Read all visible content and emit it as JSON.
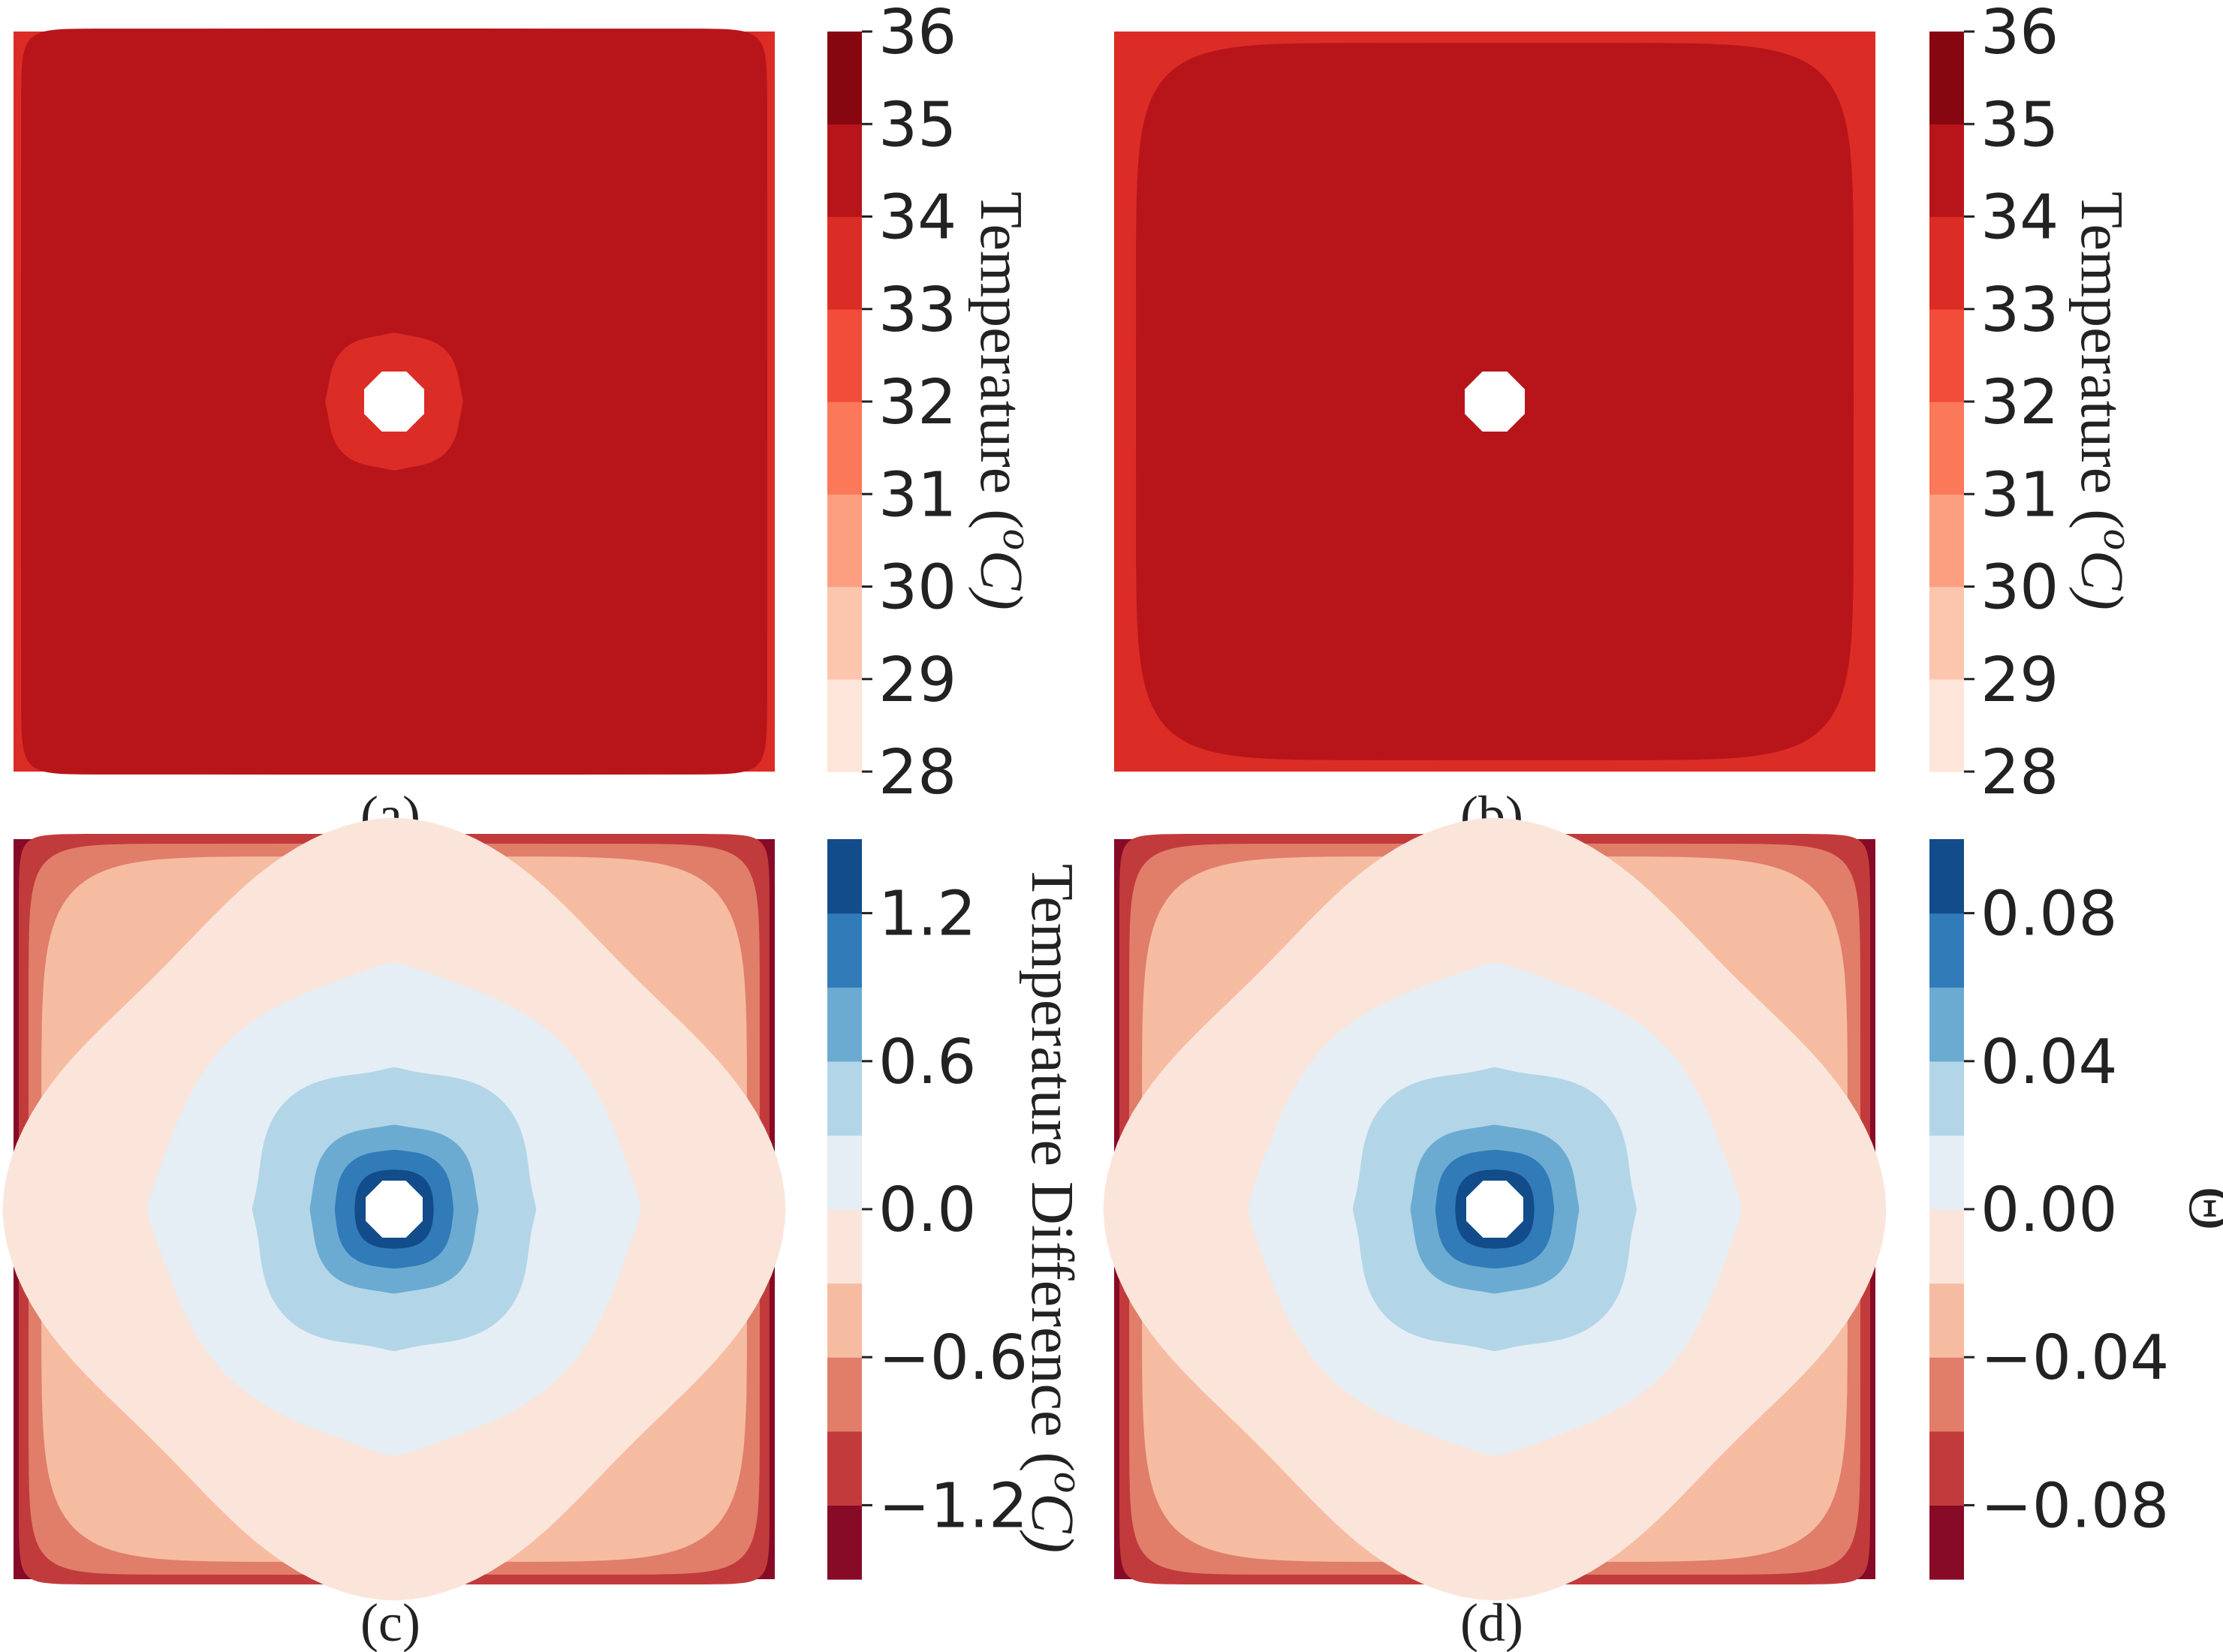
{
  "figure": {
    "panels": [
      "(a)",
      "(b)",
      "(c)",
      "(d)"
    ]
  },
  "chart_data": [
    {
      "type": "heatmap",
      "panel": "(a)",
      "plot": "filled contour",
      "colormap": "Reds",
      "colorbar": {
        "label": "Temperature (°C)",
        "label_base": "Temperature (",
        "label_sup": "o",
        "label_end": "C)",
        "ticks": [
          "28",
          "29",
          "30",
          "31",
          "32",
          "33",
          "34",
          "35",
          "36"
        ],
        "levels": [
          28,
          29,
          30,
          31,
          32,
          33,
          34,
          35,
          36
        ],
        "colors": [
          "#fee5d9",
          "#fcc5ae",
          "#fc9f81",
          "#fb7858",
          "#f14d3a",
          "#dc2c26",
          "#b8151b",
          "#870710"
        ]
      },
      "regions": [
        {
          "name": "domain",
          "value": 34.5
        },
        {
          "name": "edge band",
          "value": 33.5
        },
        {
          "name": "ring around hole",
          "value": 33.5
        }
      ],
      "hole_color": "#ffffff"
    },
    {
      "type": "heatmap",
      "panel": "(b)",
      "plot": "filled contour",
      "colormap": "Reds",
      "colorbar": {
        "label": "Temperature (°C)",
        "label_base": "Temperature (",
        "label_sup": "o",
        "label_end": "C)",
        "ticks": [
          "28",
          "29",
          "30",
          "31",
          "32",
          "33",
          "34",
          "35",
          "36"
        ],
        "levels": [
          28,
          29,
          30,
          31,
          32,
          33,
          34,
          35,
          36
        ],
        "colors": [
          "#fee5d9",
          "#fcc5ae",
          "#fc9f81",
          "#fb7858",
          "#f14d3a",
          "#dc2c26",
          "#b8151b",
          "#870710"
        ]
      },
      "regions": [
        {
          "name": "domain",
          "value": 34.5
        },
        {
          "name": "edge band",
          "value": 33.5
        }
      ],
      "hole_color": "#ffffff"
    },
    {
      "type": "heatmap",
      "panel": "(c)",
      "plot": "filled contour",
      "colormap": "RdBu",
      "colorbar": {
        "label": "Temperature Difference (°C)",
        "label_base": "Temperature Difference (",
        "label_sup": "o",
        "label_end": "C)",
        "ticks": [
          "−1.2",
          "−0.6",
          "0.0",
          "0.6",
          "1.2"
        ],
        "tick_values": [
          -1.2,
          -0.6,
          0.0,
          0.6,
          1.2
        ],
        "levels": [
          -1.5,
          -1.2,
          -0.9,
          -0.6,
          -0.3,
          0.0,
          0.3,
          0.6,
          0.9,
          1.2,
          1.5
        ],
        "colors": [
          "#870b26",
          "#c23b3c",
          "#e07e6a",
          "#f6bca2",
          "#fbe5da",
          "#e4eef4",
          "#b3d5e8",
          "#6babd1",
          "#307bb8",
          "#124c8a"
        ]
      },
      "contours_from_outside_in": [
        {
          "name": "corner",
          "value": -1.35
        },
        {
          "name": "corner",
          "value": -1.05
        },
        {
          "name": "corner",
          "value": -0.75
        },
        {
          "name": "edge band",
          "value": -0.45
        },
        {
          "name": "outer field",
          "value": -0.15
        },
        {
          "name": "mid field",
          "value": 0.15
        },
        {
          "name": "diamond",
          "value": 0.45
        },
        {
          "name": "diamond",
          "value": 0.75
        },
        {
          "name": "diamond",
          "value": 1.05
        },
        {
          "name": "around hole",
          "value": 1.35
        }
      ],
      "hole_color": "#ffffff"
    },
    {
      "type": "heatmap",
      "panel": "(d)",
      "plot": "filled contour",
      "colormap": "RdBu",
      "colorbar": {
        "label": "Θ",
        "ticks": [
          "−0.08",
          "−0.04",
          "0.00",
          "0.04",
          "0.08"
        ],
        "tick_values": [
          -0.08,
          -0.04,
          0.0,
          0.04,
          0.08
        ],
        "levels": [
          -0.1,
          -0.08,
          -0.06,
          -0.04,
          -0.02,
          0.0,
          0.02,
          0.04,
          0.06,
          0.08,
          0.1
        ],
        "colors": [
          "#870b26",
          "#c23b3c",
          "#e07e6a",
          "#f6bca2",
          "#fbe5da",
          "#e4eef4",
          "#b3d5e8",
          "#6babd1",
          "#307bb8",
          "#124c8a"
        ]
      },
      "contours_from_outside_in": [
        {
          "name": "corner",
          "value": -0.09
        },
        {
          "name": "corner",
          "value": -0.07
        },
        {
          "name": "corner",
          "value": -0.05
        },
        {
          "name": "edge band",
          "value": -0.03
        },
        {
          "name": "outer field",
          "value": -0.01
        },
        {
          "name": "mid field",
          "value": 0.01
        },
        {
          "name": "diamond",
          "value": 0.03
        },
        {
          "name": "diamond",
          "value": 0.05
        },
        {
          "name": "diamond",
          "value": 0.07
        },
        {
          "name": "around hole",
          "value": 0.09
        }
      ],
      "hole_color": "#ffffff"
    }
  ]
}
